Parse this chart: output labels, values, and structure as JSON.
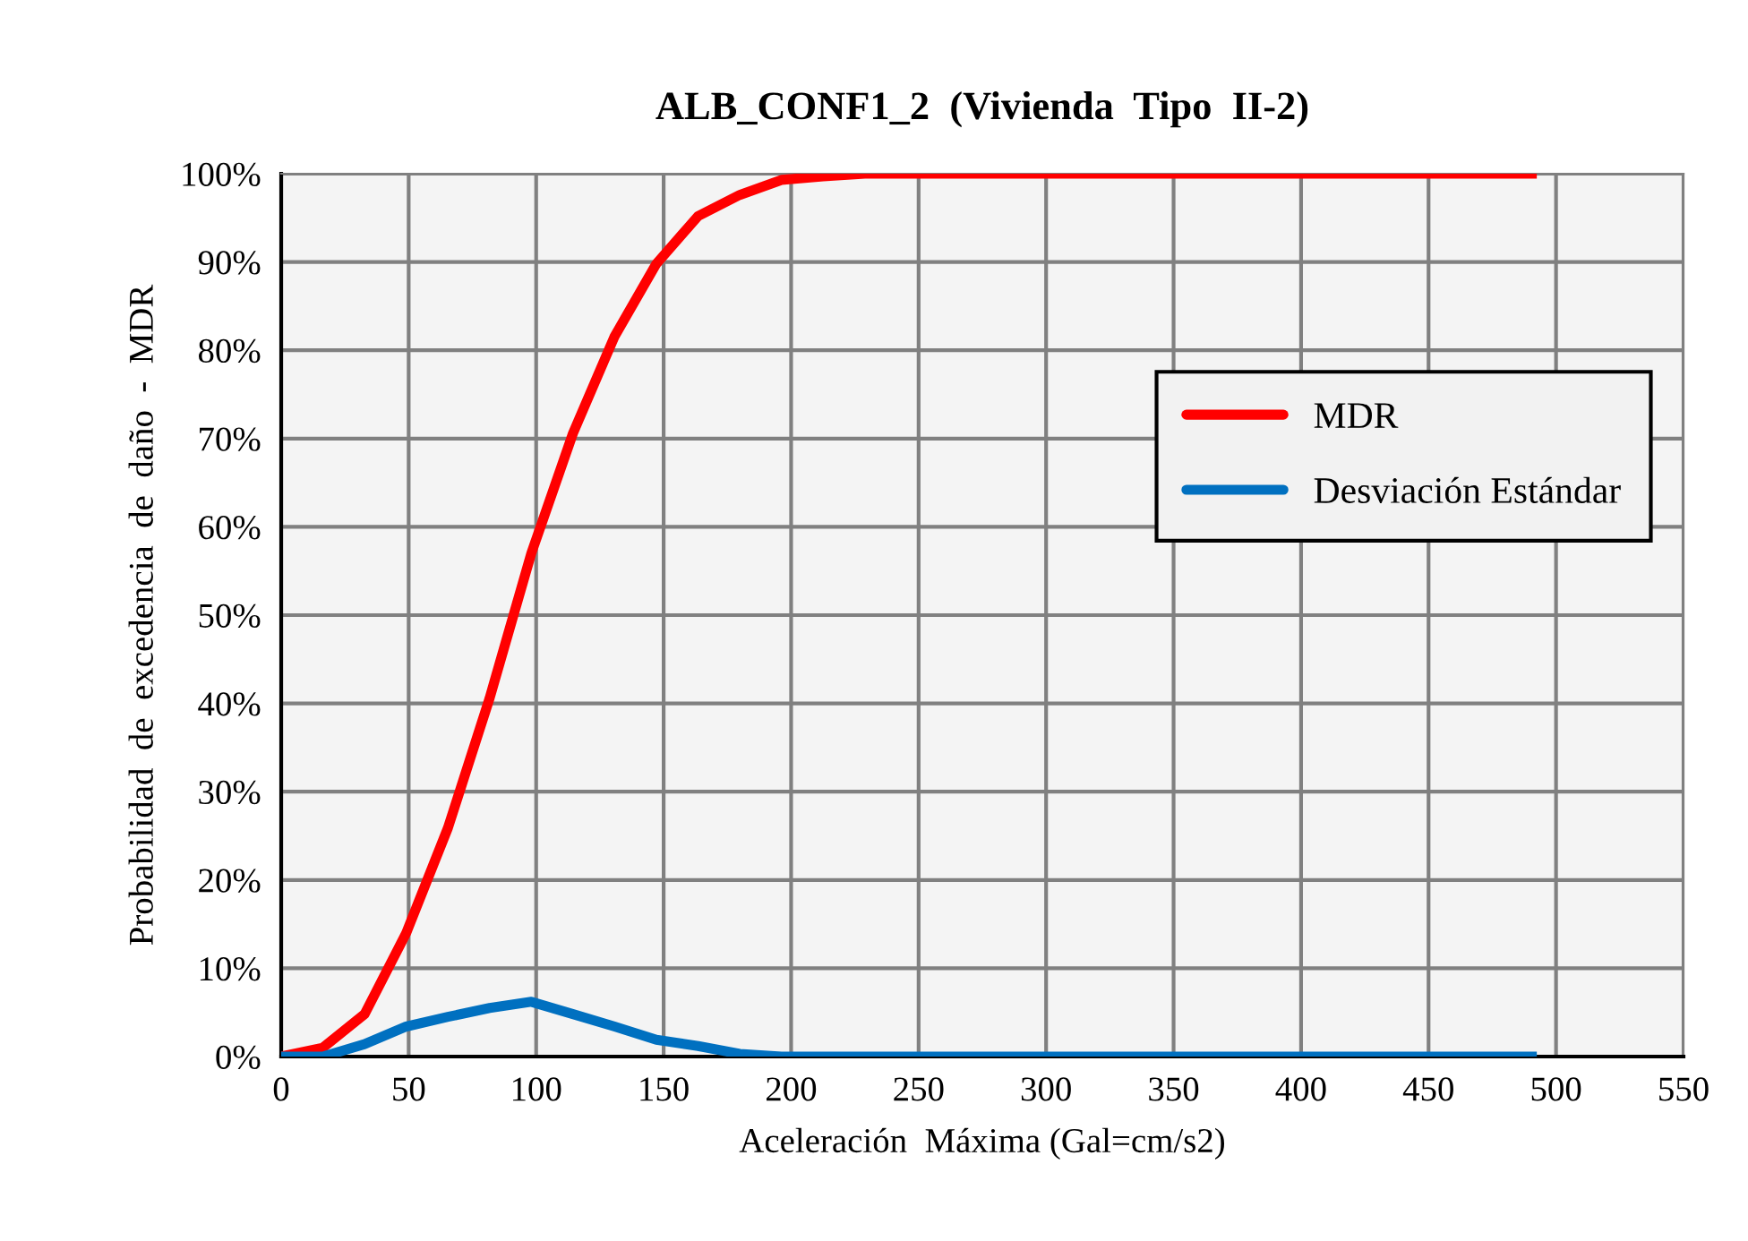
{
  "chart_data": {
    "type": "line",
    "title": "ALB_CONF1_2  (Vivienda  Tipo  II-2)",
    "xlabel": "Aceleración  Máxima (Gal=cm/s2)",
    "ylabel": "Probabilidad  de  excedencia  de  daño  -  MDR",
    "x": [
      0,
      16.35,
      32.7,
      49.05,
      65.4,
      81.75,
      98.1,
      114.45,
      130.8,
      147.15,
      163.5,
      179.85,
      196.2,
      212.55,
      228.9,
      245.25,
      261.6,
      277.95,
      294.3,
      310.65,
      327,
      343.35,
      359.7,
      376.05,
      392.4,
      408.75,
      425.1,
      441.45,
      457.8,
      474.15,
      490.5
    ],
    "series": [
      {
        "name": "MDR",
        "color": "#ff0000",
        "values": [
          0,
          1.0,
          4.8,
          14.0,
          25.9,
          40.6,
          57.0,
          70.6,
          81.6,
          89.8,
          95.2,
          97.6,
          99.3,
          99.7,
          100,
          100,
          100,
          100,
          100,
          100,
          100,
          100,
          100,
          100,
          100,
          100,
          100,
          100,
          100,
          100,
          100
        ]
      },
      {
        "name": "Desviación Estándar",
        "color": "#0070c0",
        "values": [
          0,
          0,
          1.4,
          3.4,
          4.5,
          5.5,
          6.2,
          4.8,
          3.4,
          1.9,
          1.2,
          0.3,
          0,
          0,
          0,
          0,
          0,
          0,
          0,
          0,
          0,
          0,
          0,
          0,
          0,
          0,
          0,
          0,
          0,
          0,
          0
        ]
      }
    ],
    "xlim": [
      0,
      550
    ],
    "xticks": [
      0,
      50,
      100,
      150,
      200,
      250,
      300,
      350,
      400,
      450,
      500,
      550
    ],
    "ylim": [
      0,
      100
    ],
    "yticks": [
      {
        "value": 0,
        "label": "0%"
      },
      {
        "value": 10,
        "label": "10%"
      },
      {
        "value": 20,
        "label": "20%"
      },
      {
        "value": 30,
        "label": "30%"
      },
      {
        "value": 40,
        "label": "40%"
      },
      {
        "value": 50,
        "label": "50%"
      },
      {
        "value": 60,
        "label": "60%"
      },
      {
        "value": 70,
        "label": "70%"
      },
      {
        "value": 80,
        "label": "80%"
      },
      {
        "value": 90,
        "label": "90%"
      },
      {
        "value": 100,
        "label": "100%"
      }
    ],
    "grid": true,
    "legend": "right",
    "marker": "none",
    "line_style": "solid"
  }
}
